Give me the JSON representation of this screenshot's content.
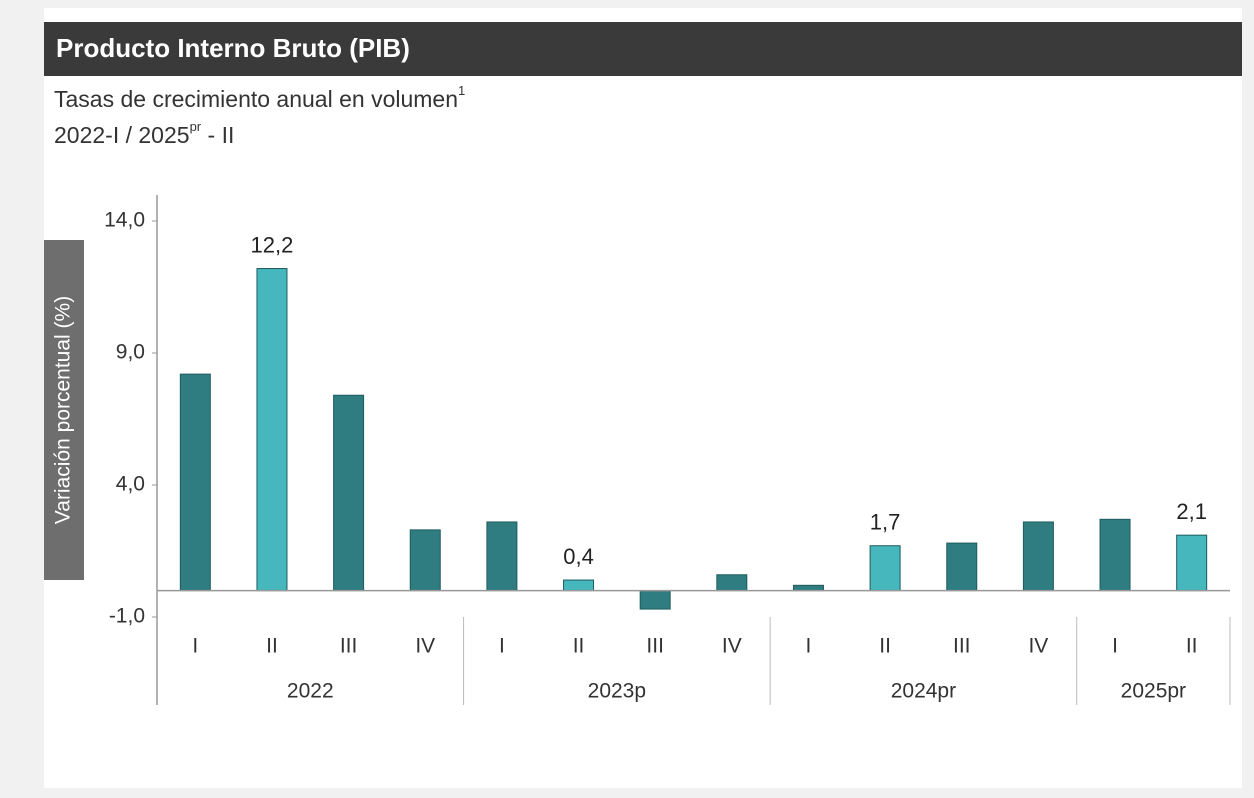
{
  "chart_data": {
    "type": "bar",
    "title": "Producto Interno Bruto (PIB)",
    "subtitle": {
      "line1": "Tasas de crecimiento anual en volumen",
      "line1_sup": "1",
      "line2_a": "2022-I / 2025",
      "line2_sup": "pr",
      "line2_b": " - II"
    },
    "y_label": "Variación porcentual (%)",
    "groups": [
      {
        "label": "2022",
        "categories": [
          "I",
          "II",
          "III",
          "IV"
        ]
      },
      {
        "label": "2023p",
        "categories": [
          "I",
          "II",
          "III",
          "IV"
        ]
      },
      {
        "label": "2024pr",
        "categories": [
          "I",
          "II",
          "III",
          "IV"
        ]
      },
      {
        "label": "2025pr",
        "categories": [
          "I",
          "II"
        ]
      }
    ],
    "values": [
      8.2,
      12.2,
      7.4,
      2.3,
      2.6,
      0.4,
      -0.7,
      0.6,
      0.2,
      1.7,
      1.8,
      2.6,
      2.7,
      2.1
    ],
    "value_labels": [
      null,
      "12,2",
      null,
      null,
      null,
      "0,4",
      null,
      null,
      null,
      "1,7",
      null,
      null,
      null,
      "2,1"
    ],
    "colors": [
      "#2f7d80",
      "#45b7bd",
      "#2f7d80",
      "#2f7d80",
      "#2f7d80",
      "#45b7bd",
      "#2f7d80",
      "#2f7d80",
      "#2f7d80",
      "#45b7bd",
      "#2f7d80",
      "#2f7d80",
      "#2f7d80",
      "#45b7bd"
    ],
    "ylim": [
      -1,
      14
    ],
    "yticks": [
      {
        "value": -1,
        "label": "-1,0"
      },
      {
        "value": 4,
        "label": "4,0"
      },
      {
        "value": 9,
        "label": "9,0"
      },
      {
        "value": 14,
        "label": "14,0"
      }
    ],
    "grid": false
  }
}
